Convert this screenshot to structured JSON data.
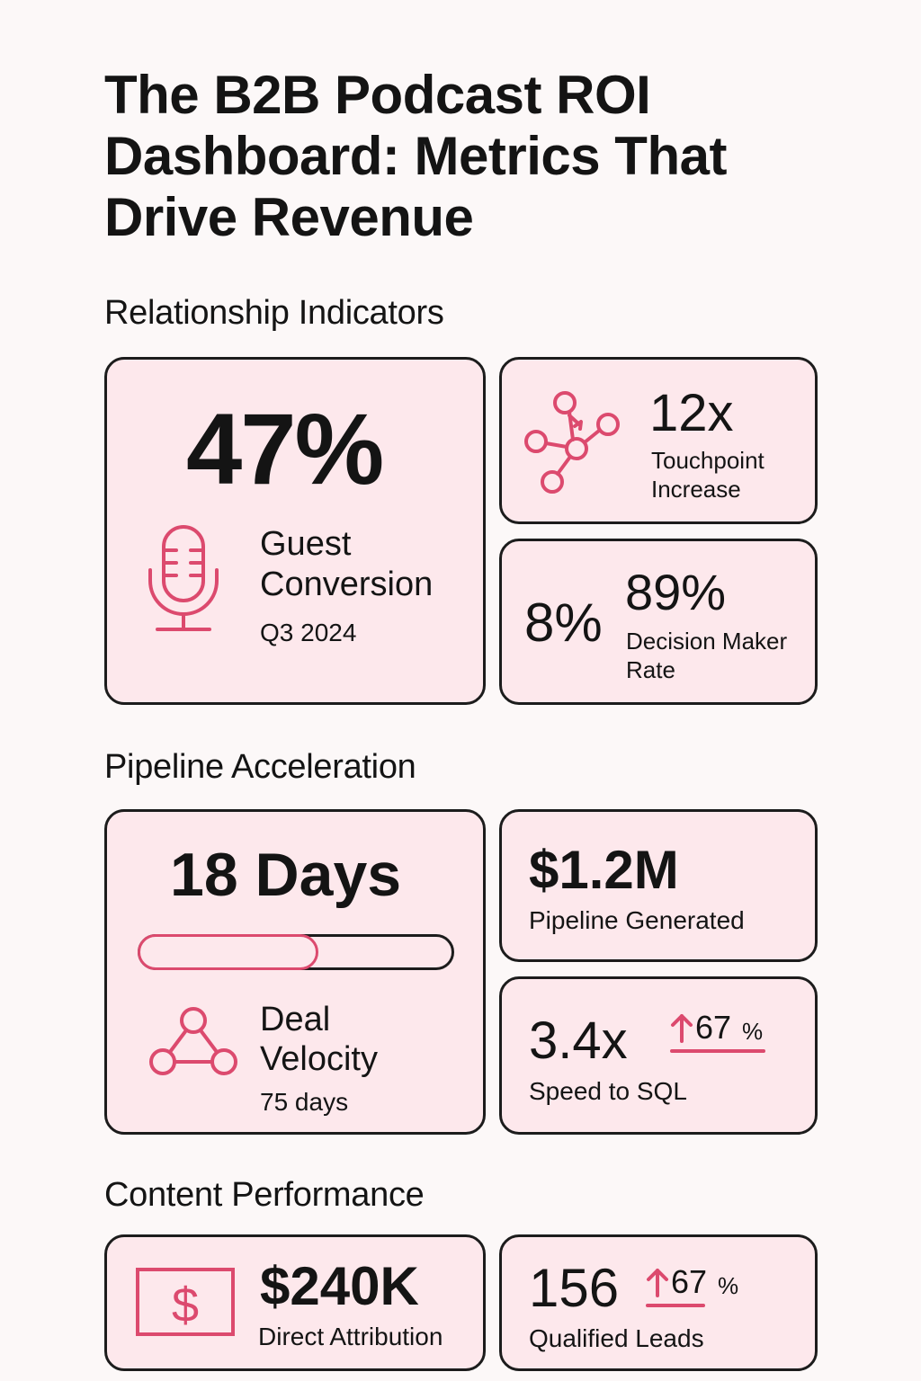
{
  "title": {
    "line1": "The B2B Podcast ROI",
    "line2": "Dashboard: Metrics That",
    "line3": "Drive Revenue"
  },
  "colors": {
    "accent": "#dc4a6e",
    "card_bg": "#fde8ec",
    "border": "#1c1c1c",
    "text": "#141414"
  },
  "sections": {
    "relationship": {
      "heading": "Relationship Indicators",
      "guest_conversion": {
        "value": "47%",
        "label_line1": "Guest",
        "label_line2": "Conversion",
        "period": "Q3 2024",
        "icon": "microphone-icon"
      },
      "touchpoint": {
        "value": "12x",
        "label_line1": "Touchpoint",
        "label_line2": "Increase",
        "icon": "network-nodes-icon"
      },
      "decision_maker": {
        "secondary_value": "8%",
        "value": "89%",
        "label_line1": "Decision Maker",
        "label_line2": "Rate"
      }
    },
    "pipeline": {
      "heading": "Pipeline Acceleration",
      "deal_velocity": {
        "value": "18 Days",
        "progress_fraction": 0.57,
        "label_line1": "Deal",
        "label_line2": "Velocity",
        "sub": "75 days",
        "icon": "triangle-nodes-icon"
      },
      "pipeline_generated": {
        "value": "$1.2M",
        "label": "Pipeline Generated"
      },
      "speed_to_sql": {
        "value": "3.4x",
        "change": "67",
        "change_unit": "%",
        "label": "Speed to SQL",
        "icon": "arrow-up-icon"
      }
    },
    "content": {
      "heading": "Content Performance",
      "direct_attribution": {
        "value": "$240K",
        "label": "Direct Attribution",
        "icon": "dollar-bill-icon"
      },
      "qualified_leads": {
        "value": "156",
        "change": "67",
        "change_unit": "%",
        "label": "Qualified Leads",
        "icon": "arrow-up-icon"
      }
    }
  }
}
